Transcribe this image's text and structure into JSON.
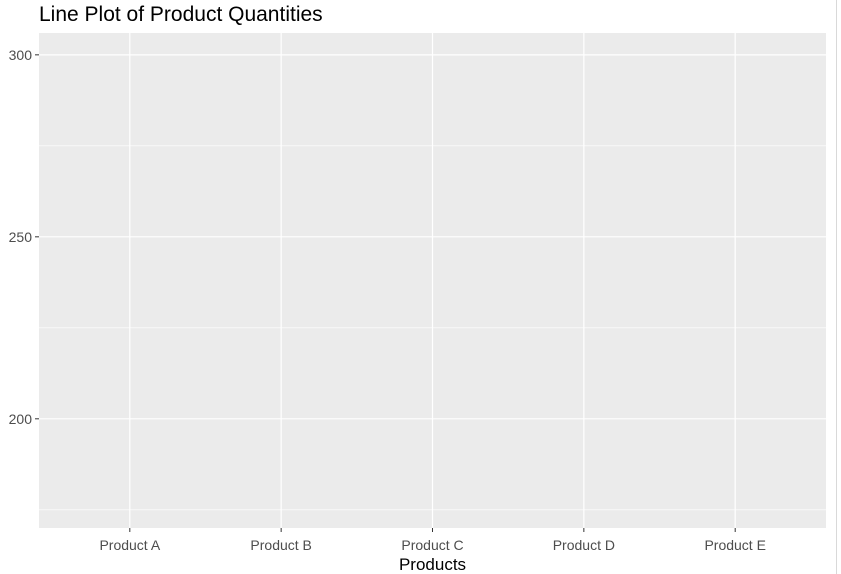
{
  "chart_data": {
    "type": "line",
    "title": "Line Plot of Product Quantities",
    "xlabel": "Products",
    "ylabel": "",
    "categories": [
      "Product A",
      "Product B",
      "Product C",
      "Product D",
      "Product E"
    ],
    "series": [],
    "ylim": [
      170,
      306
    ],
    "y_ticks": [
      200,
      250,
      300
    ],
    "y_minor_ticks": [
      175,
      225,
      275
    ],
    "grid": true,
    "legend": "none",
    "panel_color": "#ebebeb",
    "grid_color": "#ffffff",
    "tick_color": "#333333",
    "ylabel_color": "#0e9bb5"
  }
}
